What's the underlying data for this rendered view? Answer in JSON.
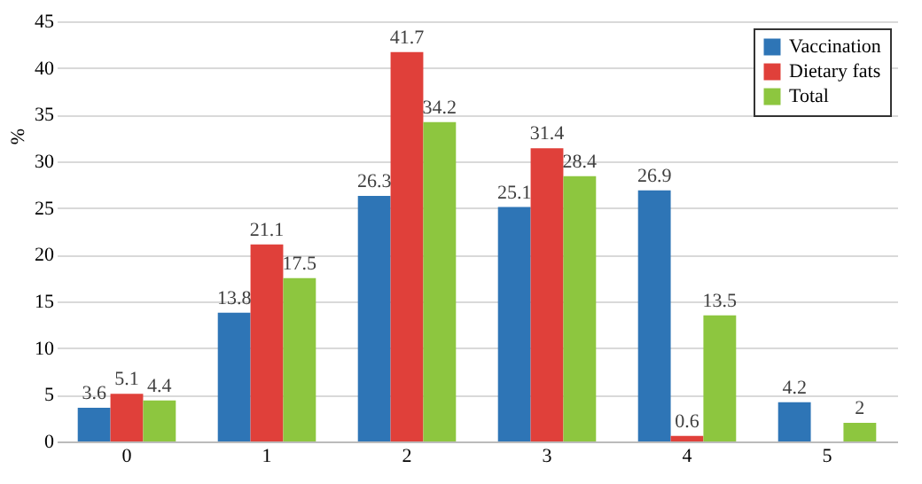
{
  "chart_data": {
    "type": "bar",
    "ylabel": "%",
    "categories": [
      "0",
      "1",
      "2",
      "3",
      "4",
      "5"
    ],
    "series": [
      {
        "name": "Vaccination",
        "color": "#2e75b6",
        "values": [
          3.6,
          13.8,
          26.3,
          25.1,
          26.9,
          4.2
        ]
      },
      {
        "name": "Dietary fats",
        "color": "#e0403a",
        "values": [
          5.1,
          21.1,
          41.7,
          31.4,
          0.6,
          null
        ]
      },
      {
        "name": "Total",
        "color": "#8dc63f",
        "values": [
          4.4,
          17.5,
          34.2,
          28.4,
          13.5,
          2
        ]
      }
    ],
    "ylim": [
      0,
      45
    ],
    "yticks": [
      0,
      5,
      10,
      15,
      20,
      25,
      30,
      35,
      40,
      45
    ],
    "grid": "y",
    "legend": "top right",
    "data_labels": true
  }
}
